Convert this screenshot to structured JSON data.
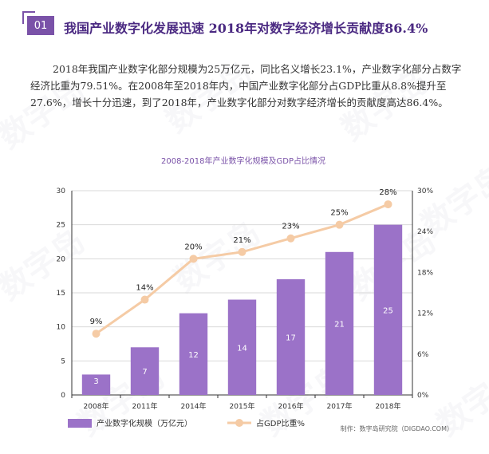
{
  "header": {
    "badge": "01",
    "title": "我国产业数字化发展迅速 2018年对数字经济增长贡献度86.4%"
  },
  "paragraph": "2018年我国产业数字化部分规模为25万亿元，同比名义增长23.1%，产业数字化部分占数字经济比重为79.51%。在2008年至2018年内，中国产业数字化部分占GDP比重从8.8%提升至27.6%，增长十分迅速，到了2018年，产业数字化部分对数字经济增长的贡献度高达86.4%。",
  "watermark": "数字岛",
  "source": "制作：数字岛研究院（DIGDAO.COM）",
  "colors": {
    "bar": "#9b72c8",
    "line": "#f5cba5",
    "title": "#4b2a82",
    "badge": "#7a52a8"
  },
  "chart_data": {
    "type": "bar",
    "title": "2008-2018年产业数字化规模及GDP占比情况",
    "categories": [
      "2008年",
      "2011年",
      "2014年",
      "2015年",
      "2016年",
      "2017年",
      "2018年"
    ],
    "series": [
      {
        "name": "产业数字化规模（万亿元）",
        "type": "bar",
        "axis": "left",
        "values": [
          3,
          7,
          12,
          14,
          17,
          21,
          25
        ],
        "labels": [
          "3",
          "7",
          "12",
          "14",
          "17",
          "21",
          "25"
        ]
      },
      {
        "name": "占GDP比重%",
        "type": "line",
        "axis": "right",
        "values": [
          9,
          14,
          20,
          21,
          23,
          25,
          28
        ],
        "labels": [
          "9%",
          "14%",
          "20%",
          "21%",
          "23%",
          "25%",
          "28%"
        ]
      }
    ],
    "ylim": [
      0,
      30
    ],
    "y_ticks": [
      "0",
      "5",
      "10",
      "15",
      "20",
      "25",
      "30"
    ],
    "y2lim": [
      0,
      30
    ],
    "y2_ticks": [
      "0%",
      "6%",
      "12%",
      "18%",
      "24%",
      "30%"
    ],
    "grid": true,
    "legend": "bottom-left"
  }
}
